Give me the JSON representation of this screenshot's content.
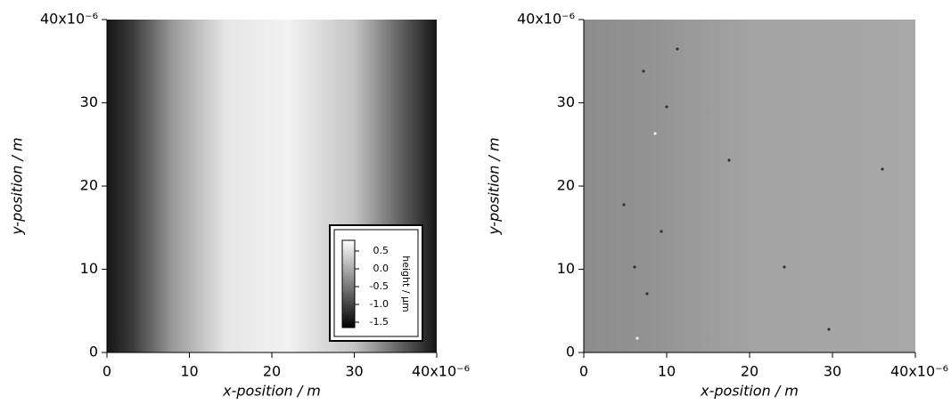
{
  "chart_data": [
    {
      "type": "heatmap",
      "xlabel": "x-position / m",
      "ylabel": "y-position / m",
      "xlim": [
        0,
        40
      ],
      "ylim": [
        0,
        40
      ],
      "xticks": [
        0,
        10,
        20,
        30,
        {
          "value": 40,
          "label": "40x10⁻⁶"
        }
      ],
      "yticks": [
        0,
        10,
        20,
        30,
        {
          "value": 40,
          "label": "40x10⁻⁶"
        }
      ],
      "colorbar": {
        "label": "height / μm",
        "lim": [
          -1.65,
          0.8
        ],
        "ticks": [
          0.5,
          {
            "value": 0,
            "label": "0.0"
          },
          -0.5,
          {
            "value": -1,
            "label": "-1.0"
          },
          -1.5
        ]
      }
    },
    {
      "type": "heatmap",
      "xlabel": "x-position / m",
      "ylabel": "y-position / m",
      "xlim": [
        0,
        40
      ],
      "ylim": [
        0,
        40
      ],
      "xticks": [
        0,
        10,
        20,
        30,
        {
          "value": 40,
          "label": "40x10⁻⁶"
        }
      ],
      "yticks": [
        0,
        10,
        20,
        30,
        {
          "value": 40,
          "label": "40x10⁻⁶"
        }
      ]
    }
  ]
}
